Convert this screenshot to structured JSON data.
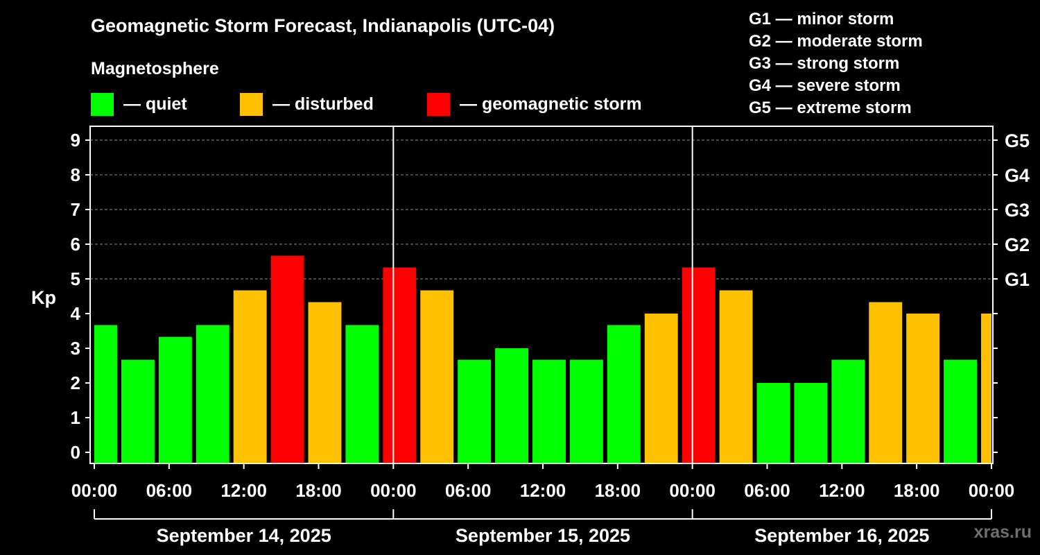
{
  "header": {
    "title": "Geomagnetic Storm Forecast, Indianapolis (UTC-04)",
    "subtitle": "Magnetosphere",
    "legend": [
      {
        "label": "— quiet",
        "color": "#00ff00"
      },
      {
        "label": "— disturbed",
        "color": "#ffc000"
      },
      {
        "label": "— geomagnetic storm",
        "color": "#ff0000"
      }
    ],
    "g_scale": [
      "G1 — minor storm",
      "G2 — moderate storm",
      "G3 — strong storm",
      "G4 — severe storm",
      "G5 — extreme storm"
    ]
  },
  "watermark": "xras.ru",
  "colors": {
    "quiet": "#00ff00",
    "disturbed": "#ffc000",
    "storm": "#ff0000",
    "grid": "#8c8c8c",
    "axis": "#ffffff"
  },
  "chart_data": {
    "type": "bar",
    "ylabel": "Kp",
    "ylim": [
      0,
      9
    ],
    "yticks": [
      0,
      1,
      2,
      3,
      4,
      5,
      6,
      7,
      8,
      9
    ],
    "g_levels": [
      {
        "label": "G1",
        "kp": 5
      },
      {
        "label": "G2",
        "kp": 6
      },
      {
        "label": "G3",
        "kp": 7
      },
      {
        "label": "G4",
        "kp": 8
      },
      {
        "label": "G5",
        "kp": 9
      }
    ],
    "x_hours_range": [
      0,
      72
    ],
    "x_ticks": [
      {
        "label": "00:00",
        "hour": 0
      },
      {
        "label": "06:00",
        "hour": 6
      },
      {
        "label": "12:00",
        "hour": 12
      },
      {
        "label": "18:00",
        "hour": 18
      },
      {
        "label": "00:00",
        "hour": 24
      },
      {
        "label": "06:00",
        "hour": 30
      },
      {
        "label": "12:00",
        "hour": 36
      },
      {
        "label": "18:00",
        "hour": 42
      },
      {
        "label": "00:00",
        "hour": 48
      },
      {
        "label": "06:00",
        "hour": 54
      },
      {
        "label": "12:00",
        "hour": 60
      },
      {
        "label": "18:00",
        "hour": 66
      },
      {
        "label": "00:00",
        "hour": 72
      }
    ],
    "days": [
      {
        "label": "September 14, 2025",
        "start_hour": 0,
        "end_hour": 24
      },
      {
        "label": "September 15, 2025",
        "start_hour": 24,
        "end_hour": 48
      },
      {
        "label": "September 16, 2025",
        "start_hour": 48,
        "end_hour": 72
      }
    ],
    "bars": [
      {
        "start": 0,
        "end": 2,
        "kp": 3.67,
        "level": "quiet"
      },
      {
        "start": 2,
        "end": 5,
        "kp": 2.67,
        "level": "quiet"
      },
      {
        "start": 5,
        "end": 8,
        "kp": 3.33,
        "level": "quiet"
      },
      {
        "start": 8,
        "end": 11,
        "kp": 3.67,
        "level": "quiet"
      },
      {
        "start": 11,
        "end": 14,
        "kp": 4.67,
        "level": "disturbed"
      },
      {
        "start": 14,
        "end": 17,
        "kp": 5.67,
        "level": "storm"
      },
      {
        "start": 17,
        "end": 20,
        "kp": 4.33,
        "level": "disturbed"
      },
      {
        "start": 20,
        "end": 23,
        "kp": 3.67,
        "level": "quiet"
      },
      {
        "start": 23,
        "end": 26,
        "kp": 5.33,
        "level": "storm"
      },
      {
        "start": 26,
        "end": 29,
        "kp": 4.67,
        "level": "disturbed"
      },
      {
        "start": 29,
        "end": 32,
        "kp": 2.67,
        "level": "quiet"
      },
      {
        "start": 32,
        "end": 35,
        "kp": 3.0,
        "level": "quiet"
      },
      {
        "start": 35,
        "end": 38,
        "kp": 2.67,
        "level": "quiet"
      },
      {
        "start": 38,
        "end": 41,
        "kp": 2.67,
        "level": "quiet"
      },
      {
        "start": 41,
        "end": 44,
        "kp": 3.67,
        "level": "quiet"
      },
      {
        "start": 44,
        "end": 47,
        "kp": 4.0,
        "level": "disturbed"
      },
      {
        "start": 47,
        "end": 50,
        "kp": 5.33,
        "level": "storm"
      },
      {
        "start": 50,
        "end": 53,
        "kp": 4.67,
        "level": "disturbed"
      },
      {
        "start": 53,
        "end": 56,
        "kp": 2.0,
        "level": "quiet"
      },
      {
        "start": 56,
        "end": 59,
        "kp": 2.0,
        "level": "quiet"
      },
      {
        "start": 59,
        "end": 62,
        "kp": 2.67,
        "level": "quiet"
      },
      {
        "start": 62,
        "end": 65,
        "kp": 4.33,
        "level": "disturbed"
      },
      {
        "start": 65,
        "end": 68,
        "kp": 4.0,
        "level": "disturbed"
      },
      {
        "start": 68,
        "end": 71,
        "kp": 2.67,
        "level": "quiet"
      },
      {
        "start": 71,
        "end": 72,
        "kp": 4.0,
        "level": "disturbed"
      }
    ]
  }
}
